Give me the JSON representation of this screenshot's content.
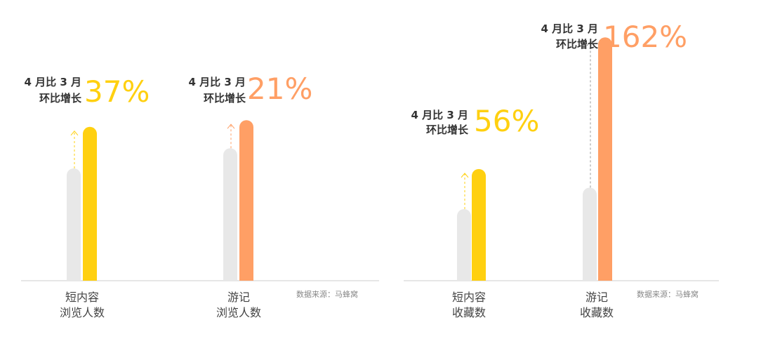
{
  "colors": {
    "prev_bar": "#e8e8e8",
    "yellow": "#ffd010",
    "orange": "#ff9f65",
    "baseline": "#dddddd",
    "arrow_gray": "#999999"
  },
  "chart_data": [
    {
      "type": "bar",
      "categories": [
        "短内容\n浏览人数",
        "游记\n浏览人数"
      ],
      "series": [
        {
          "values": [
            100,
            118
          ]
        },
        {
          "values": [
            137,
            143
          ]
        }
      ],
      "annotations": [
        {
          "line1": "4 月比 3 月",
          "line2": "环比增长",
          "value": "37%",
          "color": "yellow"
        },
        {
          "line1": "4 月比 3 月",
          "line2": "环比增长",
          "value": "21%",
          "color": "orange"
        }
      ],
      "source": "数据来源：马蜂窝"
    },
    {
      "type": "bar",
      "categories": [
        "短内容\n收藏数",
        "游记\n收藏数"
      ],
      "series": [
        {
          "values": [
            100,
            130
          ]
        },
        {
          "values": [
            156,
            340
          ]
        }
      ],
      "annotations": [
        {
          "line1": "4 月比 3 月",
          "line2": "环比增长",
          "value": "56%",
          "color": "yellow"
        },
        {
          "line1": "4 月比 3 月",
          "line2": "环比增长",
          "value": "162%",
          "color": "orange"
        }
      ],
      "source": "数据来源：马蜂窝"
    }
  ]
}
